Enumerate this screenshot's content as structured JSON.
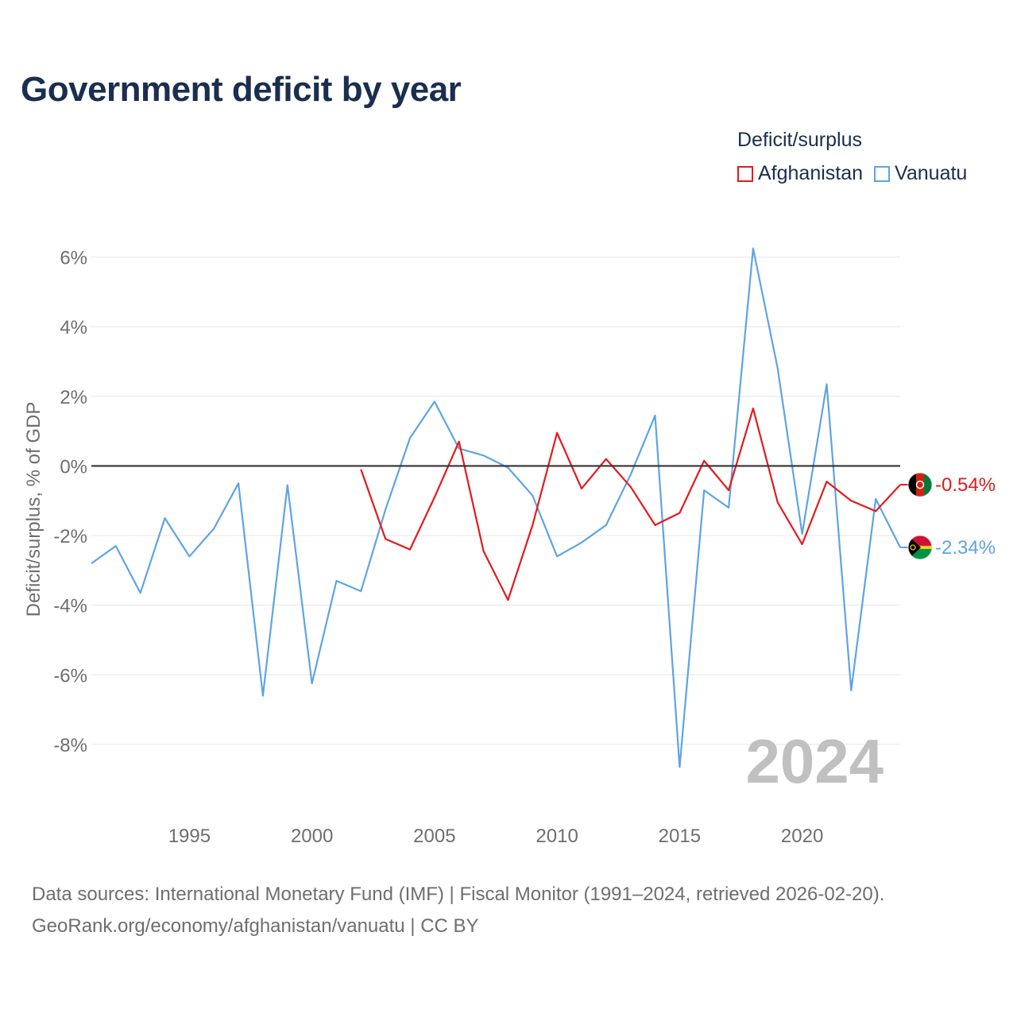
{
  "title": "Government deficit by year",
  "legend": {
    "title": "Deficit/surplus",
    "items": [
      {
        "name": "Afghanistan",
        "color": "#e31a1c"
      },
      {
        "name": "Vanuatu",
        "color": "#5ea4e3"
      }
    ]
  },
  "source": {
    "line1": "Data sources: International Monetary Fund (IMF) | Fiscal Monitor (1991–2024, retrieved 2026-02-20).",
    "line2": "GeoRank.org/economy/afghanistan/vanuatu | CC BY"
  },
  "chart_data": {
    "type": "line",
    "title": "Government deficit by year",
    "ylabel": "Deficit/surplus, % of GDP",
    "xlabel": "",
    "xlim": [
      1991,
      2024
    ],
    "ylim": [
      -9.6,
      7.2
    ],
    "x_ticks": [
      1995,
      2000,
      2005,
      2010,
      2015,
      2020
    ],
    "y_ticks": [
      -8,
      -6,
      -4,
      -2,
      0,
      2,
      4,
      6
    ],
    "y_tick_labels": [
      "-8%",
      "-6%",
      "-4%",
      "-2%",
      "0%",
      "2%",
      "4%",
      "6%"
    ],
    "watermark_year": "2024",
    "series": [
      {
        "name": "Afghanistan",
        "color": "#e31a1c",
        "end_label": "-0.54%",
        "flag": "afghanistan-flag",
        "x": [
          2002,
          2003,
          2004,
          2005,
          2006,
          2007,
          2008,
          2009,
          2010,
          2011,
          2012,
          2013,
          2014,
          2015,
          2016,
          2017,
          2018,
          2019,
          2020,
          2021,
          2022,
          2023,
          2024
        ],
        "values": [
          -0.1,
          -2.1,
          -2.4,
          -0.9,
          0.7,
          -2.45,
          -3.85,
          -1.7,
          0.95,
          -0.65,
          0.2,
          -0.6,
          -1.7,
          -1.35,
          0.15,
          -0.7,
          1.65,
          -1.05,
          -2.25,
          -0.45,
          -1.0,
          -1.3,
          -0.54
        ]
      },
      {
        "name": "Vanuatu",
        "color": "#5ea4e3",
        "end_label": "-2.34%",
        "flag": "vanuatu-flag",
        "x": [
          1991,
          1992,
          1993,
          1994,
          1995,
          1996,
          1997,
          1998,
          1999,
          2000,
          2001,
          2002,
          2003,
          2004,
          2005,
          2006,
          2007,
          2008,
          2009,
          2010,
          2011,
          2012,
          2013,
          2014,
          2015,
          2016,
          2017,
          2018,
          2019,
          2020,
          2021,
          2022,
          2023,
          2024
        ],
        "values": [
          -2.8,
          -2.3,
          -3.65,
          -1.5,
          -2.6,
          -1.8,
          -0.5,
          -6.6,
          -0.55,
          -6.25,
          -3.3,
          -3.6,
          -1.25,
          0.8,
          1.85,
          0.5,
          0.3,
          -0.05,
          -0.85,
          -2.6,
          -2.2,
          -1.7,
          -0.25,
          1.45,
          -8.65,
          -0.7,
          -1.2,
          6.25,
          2.8,
          -1.95,
          2.35,
          -6.45,
          -0.95,
          -2.34
        ]
      }
    ]
  }
}
